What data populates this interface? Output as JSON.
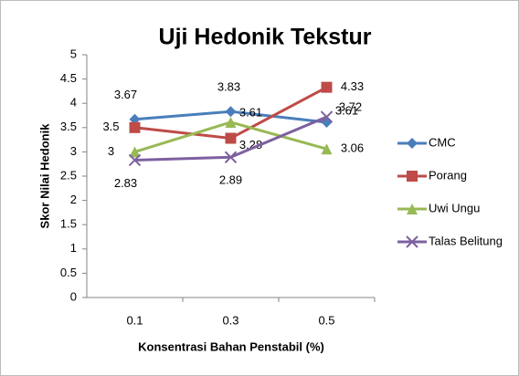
{
  "chart_data": {
    "type": "line",
    "title": "Uji Hedonik Tekstur",
    "x_label": "Konsentrasi Bahan Penstabil (%)",
    "y_label": "Skor Nilai Hedonik",
    "categories": [
      "0.1",
      "0.3",
      "0.5"
    ],
    "series": [
      {
        "name": "CMC",
        "color": "#4a7ebb",
        "marker": "diamond",
        "values": [
          3.67,
          3.83,
          3.61
        ]
      },
      {
        "name": "Porang",
        "color": "#be4b48",
        "marker": "square",
        "values": [
          3.5,
          3.28,
          4.33
        ]
      },
      {
        "name": "Uwi Ungu",
        "color": "#98b954",
        "marker": "triangle",
        "values": [
          3,
          3.61,
          3.06
        ]
      },
      {
        "name": "Talas Belitung",
        "color": "#7d60a0",
        "marker": "x",
        "values": [
          2.83,
          2.89,
          3.72
        ]
      }
    ],
    "ylim": [
      0,
      5
    ],
    "yticks": [
      0,
      0.5,
      1,
      1.5,
      2,
      2.5,
      3,
      3.5,
      4,
      4.5,
      5
    ],
    "grid": false,
    "legend": "right"
  }
}
